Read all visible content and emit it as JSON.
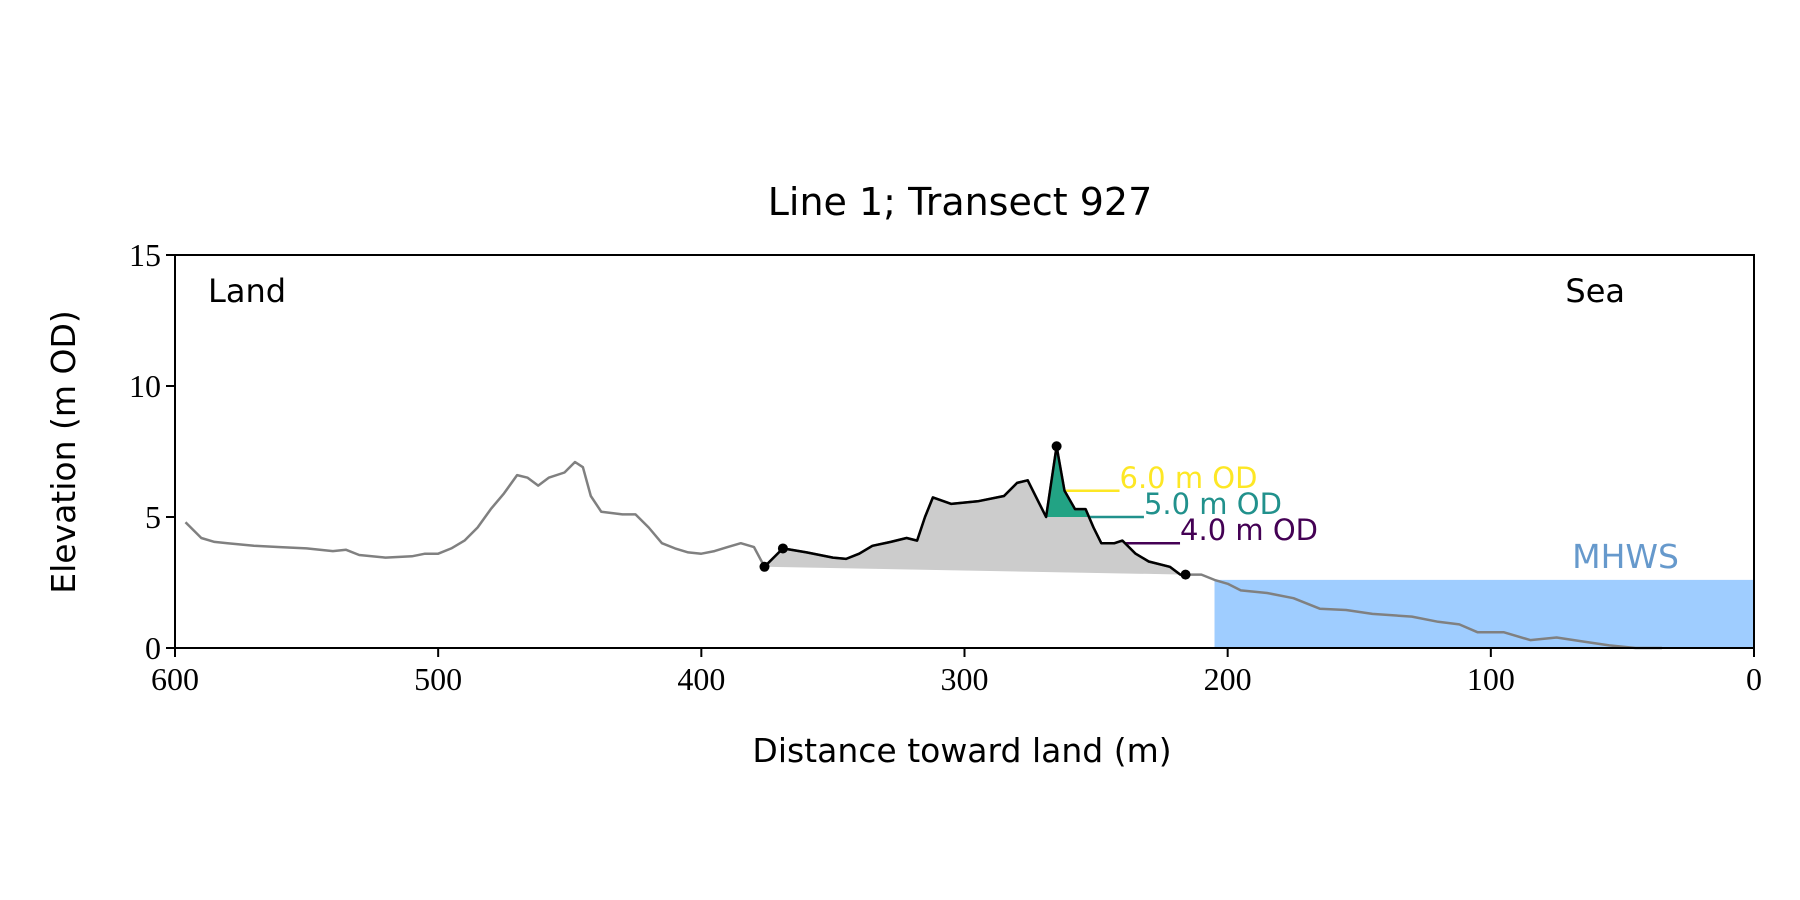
{
  "chart_data": {
    "type": "line",
    "title": "Line 1; Transect 927",
    "xlabel": "Distance toward land (m)",
    "ylabel": "Elevation (m OD)",
    "xlim": [
      600,
      0
    ],
    "ylim": [
      0,
      15
    ],
    "xticks": [
      600,
      500,
      400,
      300,
      200,
      100,
      0
    ],
    "yticks": [
      0,
      5,
      10,
      15
    ],
    "annotations": {
      "land": "Land",
      "sea": "Sea"
    },
    "profile": {
      "color": "#808080",
      "x": [
        596,
        590,
        585,
        580,
        570,
        560,
        550,
        540,
        535,
        530,
        520,
        510,
        505,
        500,
        495,
        490,
        485,
        480,
        475,
        470,
        466,
        462,
        458,
        452,
        448,
        445,
        442,
        438,
        430,
        425,
        420,
        415,
        410,
        405,
        400,
        395,
        390,
        385,
        380,
        376,
        369,
        360,
        350,
        345,
        340,
        335,
        328,
        322,
        318,
        315,
        312,
        305,
        295,
        285,
        280,
        276,
        272,
        269,
        265,
        262,
        258,
        254,
        251,
        248,
        243,
        240,
        235,
        230,
        222,
        218,
        216,
        210,
        205,
        200,
        195,
        185,
        175,
        165,
        155,
        145,
        130,
        120,
        112,
        105,
        95,
        85,
        75,
        65,
        55,
        45,
        35
      ],
      "values": [
        4.8,
        4.2,
        4.05,
        4.0,
        3.9,
        3.85,
        3.8,
        3.7,
        3.75,
        3.55,
        3.45,
        3.5,
        3.6,
        3.6,
        3.8,
        4.1,
        4.6,
        5.3,
        5.9,
        6.6,
        6.5,
        6.2,
        6.5,
        6.7,
        7.1,
        6.9,
        5.8,
        5.2,
        5.1,
        5.1,
        4.6,
        4.0,
        3.8,
        3.65,
        3.6,
        3.7,
        3.85,
        4.0,
        3.85,
        3.1,
        3.8,
        3.65,
        3.45,
        3.4,
        3.6,
        3.9,
        4.05,
        4.2,
        4.1,
        5.0,
        5.75,
        5.5,
        5.6,
        5.8,
        6.3,
        6.4,
        5.6,
        5.0,
        7.7,
        6.0,
        5.3,
        5.3,
        4.6,
        4.0,
        4.0,
        4.1,
        3.6,
        3.3,
        3.1,
        2.8,
        2.8,
        2.8,
        2.6,
        2.45,
        2.2,
        2.1,
        1.9,
        1.5,
        1.45,
        1.3,
        1.2,
        1.0,
        0.9,
        0.6,
        0.6,
        0.3,
        0.4,
        0.25,
        0.1,
        0.0,
        0.0
      ]
    },
    "dune": {
      "color": "#000000",
      "fill": "#cccccc",
      "x": [
        376,
        369,
        360,
        350,
        345,
        340,
        335,
        328,
        322,
        318,
        315,
        312,
        305,
        295,
        285,
        280,
        276,
        272,
        269,
        265,
        262,
        258,
        254,
        251,
        248,
        243,
        240,
        235,
        230,
        222,
        218,
        216
      ],
      "values": [
        3.1,
        3.8,
        3.65,
        3.45,
        3.4,
        3.6,
        3.9,
        4.05,
        4.2,
        4.1,
        5.0,
        5.75,
        5.5,
        5.6,
        5.8,
        6.3,
        6.4,
        5.6,
        5.0,
        7.7,
        6.0,
        5.3,
        5.3,
        4.6,
        4.0,
        4.0,
        4.1,
        3.6,
        3.3,
        3.1,
        2.8,
        2.8
      ]
    },
    "markers": {
      "color": "#000000",
      "x": [
        376,
        369,
        265,
        216
      ],
      "values": [
        3.1,
        3.8,
        7.7,
        2.8
      ]
    },
    "levels": [
      {
        "value": 6.0,
        "label": "6.0 m OD",
        "color": "#fde725",
        "fill": "#fde725"
      },
      {
        "value": 5.0,
        "label": "5.0 m OD",
        "color": "#21918c",
        "fill": "#22a384"
      },
      {
        "value": 4.0,
        "label": "4.0 m OD",
        "color": "#440154"
      }
    ],
    "mhws": {
      "label": "MHWS",
      "value": 2.6,
      "color": "#6699cc",
      "fill": "#9fcdff"
    }
  }
}
